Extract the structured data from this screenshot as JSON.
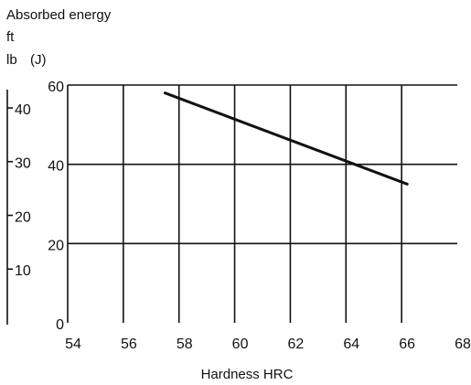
{
  "chart_data": {
    "type": "line",
    "title": "",
    "ylabel": "Absorbed energy",
    "ylabel_unit_imperial": "ft\nlb",
    "ylabel_unit_si": "(J)",
    "xlabel": "Hardness HRC",
    "xlim": [
      54,
      68
    ],
    "x_ticks": [
      54,
      56,
      58,
      60,
      62,
      64,
      66,
      68
    ],
    "ylim_j": [
      0,
      60
    ],
    "y_ticks_j": [
      0,
      20,
      40,
      60
    ],
    "y_ticks_ftlb": [
      10,
      20,
      30,
      40
    ],
    "grid": true,
    "series": [
      {
        "x": [
          57.5,
          66.2
        ],
        "y": [
          58.0,
          35.0
        ]
      }
    ],
    "colors": {
      "line": "#111111",
      "grid": "#111111",
      "background": "#ffffff"
    }
  }
}
